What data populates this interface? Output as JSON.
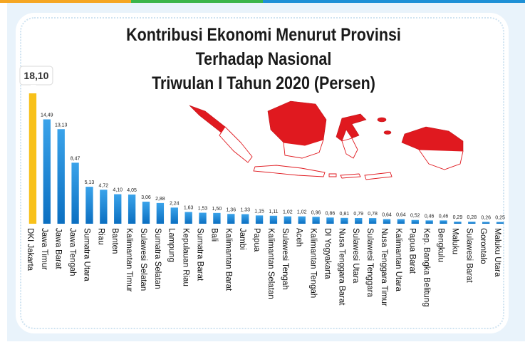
{
  "theme": {
    "stripe_colors": [
      "#f5a623",
      "#3bb54a",
      "#1e90d6",
      "#1e90d6"
    ],
    "bar_color_top": "#3aa3ea",
    "bar_color_bottom": "#0b6fc1",
    "highlight_color": "#f8c11a",
    "map_red": "#e0191f"
  },
  "map_icon": "indonesia-map-icon",
  "chart_data": {
    "type": "bar",
    "title_lines": [
      "Kontribusi Ekonomi Menurut Provinsi",
      "Terhadap Nasional",
      "Triwulan I Tahun 2020 (Persen)"
    ],
    "categories": [
      "DKI Jakarta",
      "Jawa Timur",
      "Jawa Barat",
      "Jawa Tengah",
      "Sumatra Utara",
      "Riau",
      "Banten",
      "Kalimantan Timur",
      "Sulawesi Selatan",
      "Sumatra Selatan",
      "Lampung",
      "Kepulauan Riau",
      "Sumatra Barat",
      "Bali",
      "Kalimantan Barat",
      "Jambi",
      "Papua",
      "Kalimantan Selatan",
      "Sulawesi Tengah",
      "Aceh",
      "Kalimantan Tengah",
      "DI Yogyakarta",
      "Nusa Tenggara Barat",
      "Sulawesi Utara",
      "Sulawesi Tenggara",
      "Nusa Tenggara Timur",
      "Kalimantan Utara",
      "Papua Barat",
      "Kep. Bangka Belitung",
      "Bengkulu",
      "Maluku",
      "Sulawesi Barat",
      "Gorontalo",
      "Maluku Utara"
    ],
    "values": [
      18.1,
      14.49,
      13.13,
      8.47,
      5.13,
      4.72,
      4.1,
      4.05,
      3.06,
      2.88,
      2.24,
      1.63,
      1.53,
      1.5,
      1.36,
      1.33,
      1.15,
      1.11,
      1.02,
      1.02,
      0.96,
      0.86,
      0.81,
      0.79,
      0.78,
      0.64,
      0.64,
      0.52,
      0.46,
      0.46,
      0.29,
      0.28,
      0.26,
      0.25
    ],
    "value_labels": [
      "18,10",
      "14,49",
      "13,13",
      "8,47",
      "5,13",
      "4,72",
      "4,10",
      "4,05",
      "3,06",
      "2,88",
      "2,24",
      "1,63",
      "1,53",
      "1,50",
      "1,36",
      "1,33",
      "1,15",
      "1,11",
      "1,02",
      "1,02",
      "0,96",
      "0,86",
      "0,81",
      "0,79",
      "0,78",
      "0,64",
      "0,64",
      "0,52",
      "0,46",
      "0,46",
      "0,29",
      "0,28",
      "0,26",
      "0,25"
    ],
    "highlight_index": 0,
    "ylim": [
      0,
      18.1
    ],
    "grid": false,
    "legend": "none"
  }
}
